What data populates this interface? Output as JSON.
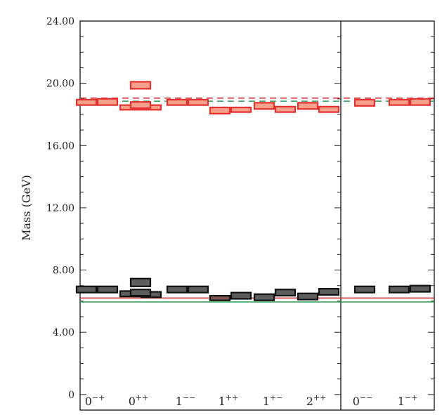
{
  "chart_data": {
    "type": "box",
    "ylabel": "Mass (GeV)",
    "ylim": [
      -1,
      24
    ],
    "yticks": [
      {
        "value": 0,
        "label": "0"
      },
      {
        "value": 4,
        "label": "4.00"
      },
      {
        "value": 8,
        "label": "8.00"
      },
      {
        "value": 12,
        "label": "12.00"
      },
      {
        "value": 16,
        "label": "16.00"
      },
      {
        "value": 20,
        "label": "20.00"
      },
      {
        "value": 24,
        "label": "24.00"
      }
    ],
    "categories": [
      {
        "base": "0",
        "sup": "−+",
        "panel": 0
      },
      {
        "base": "0",
        "sup": "++",
        "panel": 0
      },
      {
        "base": "1",
        "sup": "−−",
        "panel": 0
      },
      {
        "base": "1",
        "sup": "++",
        "panel": 0
      },
      {
        "base": "1",
        "sup": "+−",
        "panel": 0
      },
      {
        "base": "2",
        "sup": "++",
        "panel": 0
      },
      {
        "base": "0",
        "sup": "−−",
        "panel": 1
      },
      {
        "base": "1",
        "sup": "−+",
        "panel": 1
      }
    ],
    "reference_lines": [
      {
        "style": "solid",
        "color": "#d03030",
        "value": 6.2
      },
      {
        "style": "solid",
        "color": "#2e9a50",
        "value": 5.95
      },
      {
        "style": "dashed",
        "color": "#d03030",
        "value": 19.05
      },
      {
        "style": "dashed",
        "color": "#2e9a50",
        "value": 18.85
      }
    ],
    "boxes": [
      {
        "cat": 0,
        "offset": -0.15,
        "low": 6.55,
        "high": 6.95,
        "color": "dark"
      },
      {
        "cat": 0,
        "offset": 0.15,
        "low": 6.55,
        "high": 6.95,
        "color": "dark"
      },
      {
        "cat": 1,
        "offset": 0.0,
        "low": 6.95,
        "high": 7.45,
        "color": "dark"
      },
      {
        "cat": 1,
        "offset": -0.15,
        "low": 6.3,
        "high": 6.65,
        "color": "dark"
      },
      {
        "cat": 1,
        "offset": 0.15,
        "low": 6.25,
        "high": 6.6,
        "color": "dark"
      },
      {
        "cat": 1,
        "offset": 0.0,
        "low": 6.35,
        "high": 6.75,
        "color": "dark"
      },
      {
        "cat": 2,
        "offset": -0.15,
        "low": 6.55,
        "high": 6.95,
        "color": "dark"
      },
      {
        "cat": 2,
        "offset": 0.15,
        "low": 6.55,
        "high": 6.95,
        "color": "dark"
      },
      {
        "cat": 3,
        "offset": 0.15,
        "low": 6.15,
        "high": 6.55,
        "color": "dark"
      },
      {
        "cat": 3,
        "offset": -0.15,
        "low": 6.05,
        "high": 6.35,
        "color": "brown"
      },
      {
        "cat": 4,
        "offset": 0.15,
        "low": 6.35,
        "high": 6.75,
        "color": "dark"
      },
      {
        "cat": 4,
        "offset": -0.15,
        "low": 6.05,
        "high": 6.45,
        "color": "dark"
      },
      {
        "cat": 5,
        "offset": 0.15,
        "low": 6.4,
        "high": 6.8,
        "color": "dark"
      },
      {
        "cat": 5,
        "offset": -0.15,
        "low": 6.1,
        "high": 6.5,
        "color": "dark"
      },
      {
        "cat": 6,
        "offset": 0.0,
        "low": 6.55,
        "high": 6.95,
        "color": "dark"
      },
      {
        "cat": 7,
        "offset": -0.15,
        "low": 6.55,
        "high": 6.95,
        "color": "dark"
      },
      {
        "cat": 7,
        "offset": 0.15,
        "low": 6.6,
        "high": 7.0,
        "color": "dark"
      },
      {
        "cat": 0,
        "offset": -0.15,
        "low": 18.6,
        "high": 18.95,
        "color": "salmon"
      },
      {
        "cat": 0,
        "offset": 0.15,
        "low": 18.6,
        "high": 19.0,
        "color": "salmon"
      },
      {
        "cat": 1,
        "offset": 0.0,
        "low": 19.65,
        "high": 20.1,
        "color": "salmon"
      },
      {
        "cat": 1,
        "offset": -0.15,
        "low": 18.3,
        "high": 18.6,
        "color": "salmon"
      },
      {
        "cat": 1,
        "offset": 0.15,
        "low": 18.3,
        "high": 18.6,
        "color": "salmon"
      },
      {
        "cat": 1,
        "offset": 0.0,
        "low": 18.4,
        "high": 18.8,
        "color": "salmon"
      },
      {
        "cat": 2,
        "offset": -0.15,
        "low": 18.6,
        "high": 18.95,
        "color": "salmon"
      },
      {
        "cat": 2,
        "offset": 0.15,
        "low": 18.6,
        "high": 18.95,
        "color": "salmon"
      },
      {
        "cat": 3,
        "offset": -0.15,
        "low": 18.05,
        "high": 18.45,
        "color": "salmon"
      },
      {
        "cat": 3,
        "offset": 0.15,
        "low": 18.15,
        "high": 18.45,
        "color": "salmon"
      },
      {
        "cat": 4,
        "offset": -0.15,
        "low": 18.35,
        "high": 18.75,
        "color": "salmon"
      },
      {
        "cat": 4,
        "offset": 0.15,
        "low": 18.15,
        "high": 18.5,
        "color": "salmon"
      },
      {
        "cat": 5,
        "offset": -0.15,
        "low": 18.35,
        "high": 18.75,
        "color": "salmon"
      },
      {
        "cat": 5,
        "offset": 0.15,
        "low": 18.15,
        "high": 18.5,
        "color": "salmon"
      },
      {
        "cat": 6,
        "offset": 0.0,
        "low": 18.55,
        "high": 18.95,
        "color": "salmon"
      },
      {
        "cat": 7,
        "offset": -0.15,
        "low": 18.6,
        "high": 18.95,
        "color": "salmon"
      },
      {
        "cat": 7,
        "offset": 0.15,
        "low": 18.6,
        "high": 19.0,
        "color": "salmon"
      }
    ],
    "colors": {
      "dark": "#5c5c5c",
      "brown": "#7d5450",
      "salmon": "#f5a08a",
      "salmon_edge": "#e53030",
      "dark_edge": "#111111",
      "axis": "#222222"
    }
  }
}
